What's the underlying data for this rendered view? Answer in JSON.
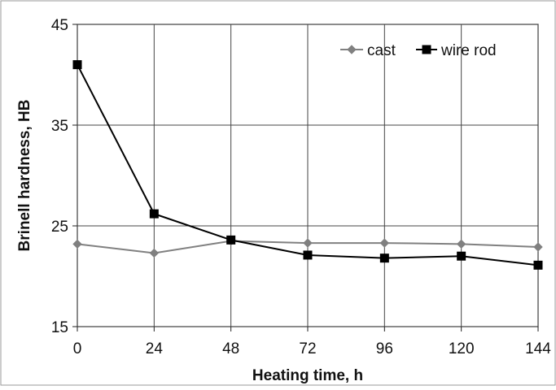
{
  "chart_data": {
    "type": "line",
    "title": "",
    "xlabel": "Heating time, h",
    "ylabel": "Brinell hardness, HB",
    "x": [
      0,
      24,
      48,
      72,
      96,
      120,
      144
    ],
    "xlim": [
      0,
      144
    ],
    "ylim": [
      15,
      45
    ],
    "xticks": [
      "0",
      "24",
      "48",
      "72",
      "96",
      "120",
      "144"
    ],
    "yticks": [
      "15",
      "25",
      "35",
      "45"
    ],
    "grid": true,
    "legend_position": "top-right",
    "series": [
      {
        "name": "cast",
        "values": [
          23.2,
          22.3,
          23.5,
          23.3,
          23.3,
          23.2,
          22.9
        ],
        "color": "#808080",
        "marker": "diamond"
      },
      {
        "name": "wire rod",
        "values": [
          41.0,
          26.2,
          23.6,
          22.1,
          21.8,
          22.0,
          21.1
        ],
        "color": "#000000",
        "marker": "square"
      }
    ]
  }
}
